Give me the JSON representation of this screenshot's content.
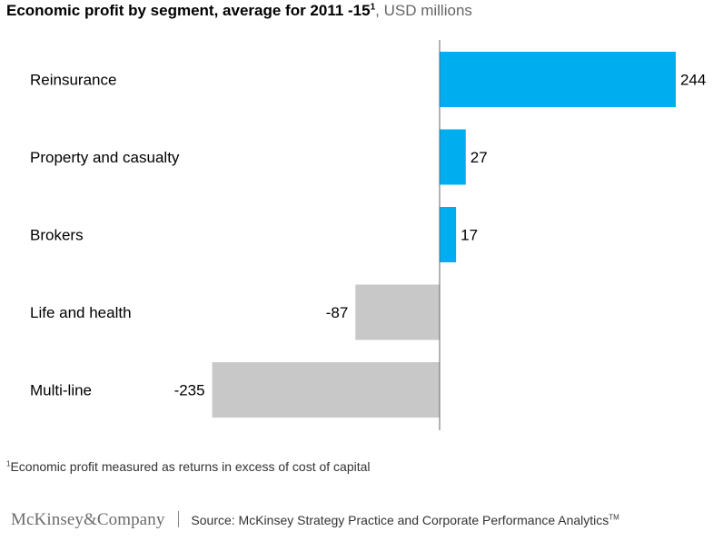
{
  "title": {
    "bold": "Economic profit by segment, average for 2011 -15",
    "bold_sup": "1",
    "light": ", USD millions"
  },
  "chart_data": {
    "type": "bar",
    "orientation": "horizontal",
    "categories": [
      "Reinsurance",
      "Property and casualty",
      "Brokers",
      "Life and health",
      "Multi-line"
    ],
    "values": [
      244,
      27,
      17,
      -87,
      -235
    ],
    "value_labels": [
      "244",
      "27",
      "17",
      "-87",
      "-235"
    ],
    "xlim": [
      -235,
      244
    ],
    "grid": false,
    "axis_labels_shown": false,
    "colors": {
      "positive": "#00aeef",
      "negative": "#c8c8c8",
      "axis": "#666666"
    }
  },
  "footnote": {
    "sup": "1",
    "text": "Economic profit measured as returns in excess of cost of capital"
  },
  "footer": {
    "logo": "McKinsey&Company",
    "source": "Source: McKinsey Strategy Practice and Corporate Performance Analytics",
    "source_sup": "TM"
  }
}
